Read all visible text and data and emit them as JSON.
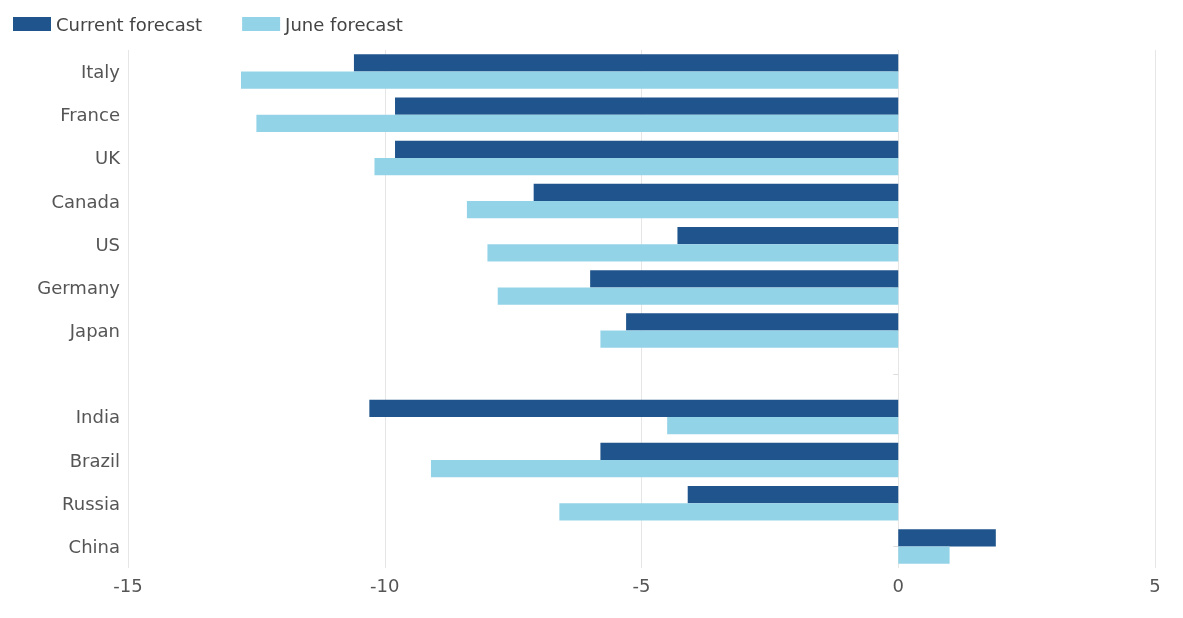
{
  "chart_data": {
    "type": "bar",
    "orientation": "horizontal",
    "categories": [
      "Italy",
      "France",
      "UK",
      "Canada",
      "US",
      "Germany",
      "Japan",
      null,
      "India",
      "Brazil",
      "Russia",
      "China"
    ],
    "series": [
      {
        "name": "Current forecast",
        "color": "#1f558c",
        "values": [
          -10.6,
          -9.8,
          -9.8,
          -7.1,
          -4.3,
          -6.0,
          -5.3,
          null,
          -10.3,
          -5.8,
          -4.1,
          1.9
        ]
      },
      {
        "name": "June forecast",
        "color": "#93d3e8",
        "values": [
          -12.8,
          -12.5,
          -10.2,
          -8.4,
          -8.0,
          -7.8,
          -5.8,
          null,
          -4.5,
          -9.1,
          -6.6,
          1.0
        ]
      }
    ],
    "xlim": [
      -15,
      5
    ],
    "xticks": [
      -15,
      -10,
      -5,
      0,
      5
    ],
    "grid": "x",
    "legend": "top left"
  }
}
